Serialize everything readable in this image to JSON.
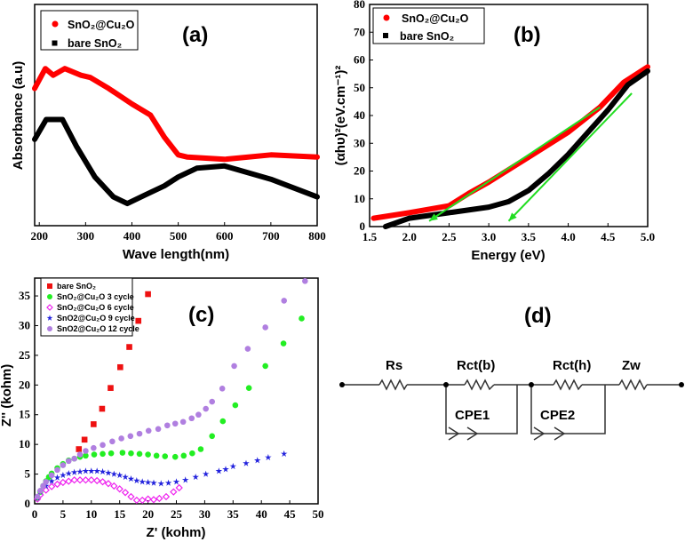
{
  "chart_data": [
    {
      "panel": "(a)",
      "type": "line",
      "xlabel": "Wave length(nm)",
      "ylabel": "Absorbance (a.u)",
      "xlim": [
        190,
        800
      ],
      "ylim": [
        0,
        1
      ],
      "xticks": [
        200,
        300,
        400,
        500,
        600,
        700,
        800
      ],
      "legend_position": "top-left",
      "series": [
        {
          "name": "SnO₂@Cu₂O",
          "color": "#ff0000",
          "marker": "circle",
          "x": [
            190,
            213,
            230,
            255,
            290,
            310,
            350,
            400,
            440,
            470,
            500,
            520,
            600,
            700,
            800
          ],
          "y": [
            0.62,
            0.71,
            0.68,
            0.71,
            0.68,
            0.67,
            0.62,
            0.55,
            0.5,
            0.4,
            0.32,
            0.31,
            0.3,
            0.32,
            0.31
          ]
        },
        {
          "name": "bare SnO₂",
          "color": "#000000",
          "marker": "square",
          "x": [
            190,
            215,
            250,
            280,
            320,
            360,
            390,
            430,
            470,
            500,
            540,
            600,
            700,
            800
          ],
          "y": [
            0.39,
            0.48,
            0.48,
            0.36,
            0.22,
            0.13,
            0.1,
            0.14,
            0.18,
            0.22,
            0.26,
            0.27,
            0.21,
            0.13
          ]
        }
      ]
    },
    {
      "panel": "(b)",
      "type": "line",
      "xlabel": "Energy (eV)",
      "ylabel": "(αhυ)²(eV.cm⁻¹)²",
      "xlim": [
        1.5,
        5.0
      ],
      "ylim": [
        0,
        80
      ],
      "xticks": [
        "1.5",
        "2.0",
        "2.5",
        "3.0",
        "3.5",
        "4.0",
        "4.5",
        "5.0"
      ],
      "yticks": [
        0,
        10,
        20,
        30,
        40,
        50,
        60,
        70,
        80
      ],
      "legend_position": "top-left",
      "series": [
        {
          "name": "SnO₂@Cu₂O",
          "color": "#ff0000",
          "marker": "circle",
          "x": [
            1.55,
            2.0,
            2.5,
            2.75,
            3.0,
            3.5,
            4.0,
            4.4,
            4.7,
            5.0
          ],
          "y": [
            3,
            5,
            7.5,
            12,
            16,
            25,
            34,
            43,
            52,
            57.5
          ]
        },
        {
          "name": "bare SnO₂",
          "color": "#000000",
          "marker": "square",
          "x": [
            1.7,
            2.0,
            2.5,
            3.0,
            3.25,
            3.5,
            3.75,
            4.0,
            4.25,
            4.5,
            4.75,
            5.0
          ],
          "y": [
            0,
            3,
            5,
            7,
            9,
            13,
            19,
            26,
            34,
            42,
            51,
            56
          ]
        }
      ],
      "fit_lines": [
        {
          "color": "#22dd22",
          "from": [
            4.4,
            43
          ],
          "to": [
            2.25,
            2
          ]
        },
        {
          "color": "#22dd22",
          "from": [
            4.8,
            48
          ],
          "to": [
            3.25,
            2
          ]
        }
      ]
    },
    {
      "panel": "(c)",
      "type": "scatter",
      "xlabel": "Z' (kohm)",
      "ylabel": "Z'' (kohm)",
      "xlim": [
        0,
        50
      ],
      "ylim": [
        0,
        38
      ],
      "xticks": [
        0,
        5,
        10,
        15,
        20,
        25,
        30,
        35,
        40,
        45,
        50
      ],
      "yticks": [
        0,
        5,
        10,
        15,
        20,
        25,
        30,
        35
      ],
      "legend_position": "top-left",
      "series": [
        {
          "name": "bare SnO₂",
          "color": "#ee1111",
          "marker": "square",
          "x": [
            7.8,
            8.8,
            10.4,
            11.9,
            13.4,
            15.1,
            16.7,
            18.3,
            20
          ],
          "y": [
            9.2,
            10.8,
            13.4,
            16,
            19.5,
            23,
            26.4,
            30.8,
            35.3
          ]
        },
        {
          "name": "SnO₂@Cu₂O 3 cycle",
          "color": "#22ee22",
          "marker": "circle",
          "x": [
            0.5,
            1,
            1.5,
            2,
            2.5,
            3,
            4,
            5,
            6,
            7,
            8,
            9,
            10.5,
            12,
            13.5,
            15.5,
            17,
            18.5,
            20,
            21.5,
            23,
            24.8,
            26.3,
            27.8,
            29.3,
            31.3,
            33.2,
            35.4,
            37.8,
            40.7,
            43.9,
            47.1
          ],
          "y": [
            1,
            2,
            3,
            3.8,
            4.5,
            5.1,
            6,
            6.7,
            7.3,
            7.6,
            7.9,
            8.1,
            8.3,
            8.4,
            8.5,
            8.6,
            8.5,
            8.4,
            8.3,
            8.1,
            8.0,
            7.9,
            8.1,
            8.5,
            9.2,
            11.4,
            13.9,
            16.6,
            19.5,
            23.2,
            27,
            31.2
          ]
        },
        {
          "name": "SnO₂@Cu₂O 6 cycle",
          "color": "#ee22ee",
          "marker": "diamond",
          "x": [
            0.5,
            1,
            2,
            3,
            4,
            5,
            6,
            7,
            8,
            9,
            10,
            11,
            12,
            13,
            14,
            15,
            16,
            17,
            18,
            19,
            20,
            21,
            22,
            23.2,
            24.5,
            25.5
          ],
          "y": [
            0.8,
            1.5,
            2.3,
            2.9,
            3.3,
            3.6,
            3.8,
            4.0,
            4.0,
            4.0,
            4.0,
            3.9,
            3.7,
            3.4,
            3.0,
            2.5,
            1.9,
            1.2,
            0.6,
            0.6,
            0.8,
            0.7,
            0.9,
            1.2,
            2.0,
            2.7
          ]
        },
        {
          "name": "SnO2@Cu₂O 9 cycle",
          "color": "#2222dd",
          "marker": "star",
          "x": [
            0.5,
            1,
            2,
            3,
            4,
            5,
            6,
            7,
            8,
            9,
            10,
            11,
            12,
            13,
            14,
            15,
            16,
            17,
            18,
            19,
            20,
            21,
            22.3,
            23.6,
            25,
            26.6,
            28.4,
            30.2,
            32.5,
            33.7,
            35,
            37.3,
            39.3,
            41.2,
            44
          ],
          "y": [
            1,
            2,
            3,
            3.8,
            4.4,
            4.8,
            5.1,
            5.3,
            5.4,
            5.5,
            5.5,
            5.5,
            5.4,
            5.2,
            5.0,
            4.8,
            4.5,
            4.2,
            3.9,
            3.7,
            3.6,
            3.5,
            3.4,
            3.5,
            3.7,
            4.0,
            4.5,
            5.0,
            5.5,
            5.8,
            6.3,
            6.8,
            7.3,
            7.8,
            8.4
          ]
        },
        {
          "name": "SnO2@Cu₂O 12 cycle",
          "color": "#b07fe0",
          "marker": "circle",
          "x": [
            0.5,
            1,
            1.5,
            2,
            3,
            4,
            5,
            6,
            7,
            8,
            9,
            10.4,
            12,
            13.7,
            15.3,
            16.9,
            18.5,
            20.1,
            21.8,
            23.4,
            24.8,
            26.2,
            27.7,
            28.9,
            30.2,
            31.3,
            33.1,
            35.2,
            37.6,
            40.7,
            44,
            47.7
          ],
          "y": [
            1.2,
            2.2,
            3,
            3.7,
            4.8,
            5.7,
            6.5,
            7.2,
            7.6,
            8.3,
            8.9,
            9.4,
            9.9,
            10.5,
            11,
            11.4,
            11.8,
            12.3,
            12.6,
            13.2,
            13.5,
            13.8,
            14.4,
            15,
            16,
            17.2,
            19.4,
            23.2,
            26.1,
            29.7,
            34.2,
            37.5
          ]
        }
      ]
    }
  ],
  "circuit": {
    "panel": "(d)",
    "elements": {
      "rs": "Rs",
      "rct_b": "Rct(b)",
      "rct_h": "Rct(h)",
      "zw": "Zw",
      "cpe1": "CPE1",
      "cpe2": "CPE2"
    }
  }
}
